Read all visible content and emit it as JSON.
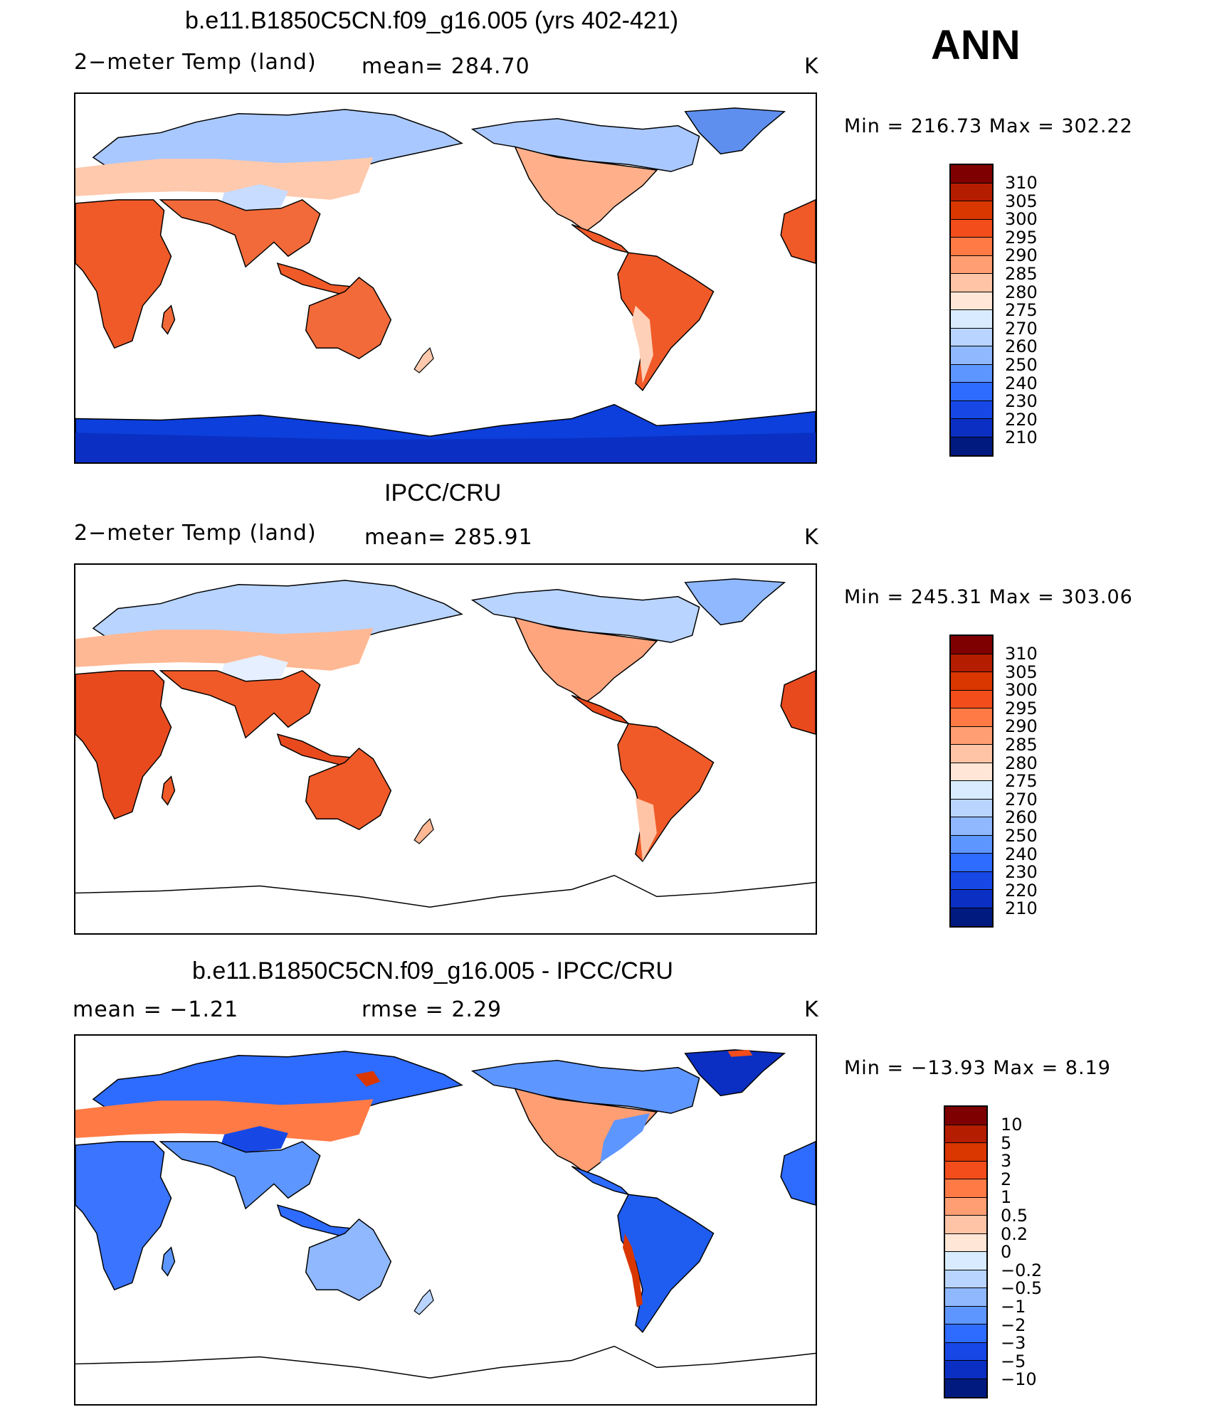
{
  "panels": [
    {
      "title": "b.e11.B1850C5CN.f09_g16.005 (yrs 402-421)",
      "left_label": "2−meter Temp (land)",
      "center_label": "mean=  284.70",
      "units": "K",
      "minmax": "Min  =  216.73  Max  =  302.22",
      "colorbar": "absolute"
    },
    {
      "title": "IPCC/CRU",
      "left_label": "2−meter Temp (land)",
      "center_label": "mean=  285.91",
      "units": "K",
      "minmax": "Min  =  245.31  Max  =  303.06",
      "colorbar": "absolute"
    },
    {
      "title": "b.e11.B1850C5CN.f09_g16.005 - IPCC/CRU",
      "left_label": "mean  =    −1.21",
      "center_label": "rmse  =     2.29",
      "units": "K",
      "minmax": "Min  =  −13.93  Max  =      8.19",
      "colorbar": "difference"
    }
  ],
  "season": "ANN",
  "colorbars": {
    "absolute": {
      "labels": [
        "310",
        "305",
        "300",
        "295",
        "290",
        "285",
        "280",
        "275",
        "270",
        "260",
        "250",
        "240",
        "230",
        "220",
        "210"
      ],
      "colors": [
        "#7f0000",
        "#b51d00",
        "#d93600",
        "#f24d1a",
        "#ff7a45",
        "#ff9e73",
        "#ffc4a6",
        "#ffe6d6",
        "#d9ecff",
        "#b8d4ff",
        "#8fb8ff",
        "#5e96ff",
        "#2e6bff",
        "#1748e6",
        "#0a2fc2",
        "#001a80"
      ]
    },
    "difference": {
      "labels": [
        "10",
        "5",
        "3",
        "2",
        "1",
        "0.5",
        "0.2",
        "0",
        "−0.2",
        "−0.5",
        "−1",
        "−2",
        "−3",
        "−5",
        "−10"
      ],
      "colors": [
        "#7f0000",
        "#b51d00",
        "#d93600",
        "#f24d1a",
        "#ff7a45",
        "#ff9e73",
        "#ffc4a6",
        "#ffe6d6",
        "#d9ecff",
        "#b8d4ff",
        "#8fb8ff",
        "#5e96ff",
        "#2e6bff",
        "#1748e6",
        "#0a2fc2",
        "#001a80"
      ]
    }
  }
}
